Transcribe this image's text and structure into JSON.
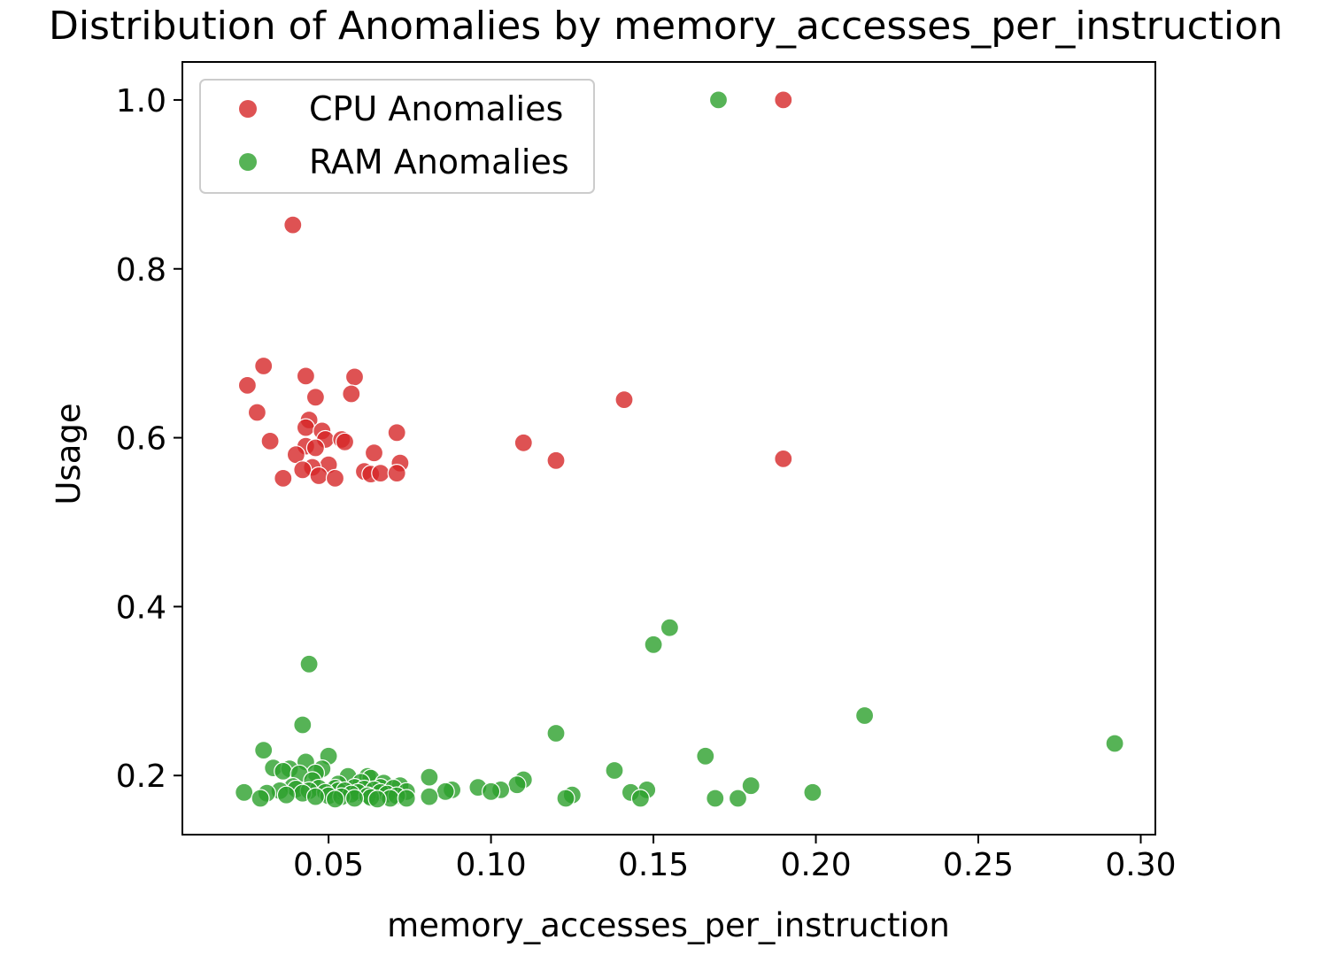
{
  "chart_data": {
    "type": "scatter",
    "title": "Distribution of Anomalies by memory_accesses_per_instruction",
    "xlabel": "memory_accesses_per_instruction",
    "ylabel": "Usage",
    "xlim": [
      0.005,
      0.3045
    ],
    "ylim": [
      0.13,
      1.045
    ],
    "xticks": [
      0.05,
      0.1,
      0.15,
      0.2,
      0.25,
      0.3
    ],
    "xtick_labels": [
      "0.05",
      "0.10",
      "0.15",
      "0.20",
      "0.25",
      "0.30"
    ],
    "yticks": [
      0.2,
      0.4,
      0.6,
      0.8,
      1.0
    ],
    "ytick_labels": [
      "0.2",
      "0.4",
      "0.6",
      "0.8",
      "1.0"
    ],
    "legend_position": "top-left",
    "grid": false,
    "series": [
      {
        "name": "CPU Anomalies",
        "color": "#d62728",
        "points": [
          [
            0.19,
            1.0
          ],
          [
            0.039,
            0.852
          ],
          [
            0.03,
            0.685
          ],
          [
            0.025,
            0.662
          ],
          [
            0.028,
            0.63
          ],
          [
            0.043,
            0.673
          ],
          [
            0.058,
            0.672
          ],
          [
            0.057,
            0.652
          ],
          [
            0.046,
            0.648
          ],
          [
            0.141,
            0.645
          ],
          [
            0.044,
            0.621
          ],
          [
            0.043,
            0.612
          ],
          [
            0.048,
            0.608
          ],
          [
            0.071,
            0.606
          ],
          [
            0.032,
            0.596
          ],
          [
            0.049,
            0.598
          ],
          [
            0.054,
            0.598
          ],
          [
            0.055,
            0.595
          ],
          [
            0.11,
            0.594
          ],
          [
            0.043,
            0.59
          ],
          [
            0.046,
            0.588
          ],
          [
            0.064,
            0.582
          ],
          [
            0.04,
            0.58
          ],
          [
            0.19,
            0.575
          ],
          [
            0.12,
            0.573
          ],
          [
            0.072,
            0.57
          ],
          [
            0.05,
            0.568
          ],
          [
            0.045,
            0.565
          ],
          [
            0.042,
            0.562
          ],
          [
            0.061,
            0.56
          ],
          [
            0.063,
            0.557
          ],
          [
            0.066,
            0.558
          ],
          [
            0.071,
            0.558
          ],
          [
            0.047,
            0.555
          ],
          [
            0.052,
            0.552
          ],
          [
            0.036,
            0.552
          ]
        ]
      },
      {
        "name": "RAM Anomalies",
        "color": "#2ca02c",
        "points": [
          [
            0.17,
            1.0
          ],
          [
            0.155,
            0.375
          ],
          [
            0.15,
            0.355
          ],
          [
            0.044,
            0.332
          ],
          [
            0.215,
            0.271
          ],
          [
            0.042,
            0.26
          ],
          [
            0.12,
            0.25
          ],
          [
            0.292,
            0.238
          ],
          [
            0.03,
            0.23
          ],
          [
            0.05,
            0.223
          ],
          [
            0.166,
            0.223
          ],
          [
            0.043,
            0.216
          ],
          [
            0.033,
            0.209
          ],
          [
            0.038,
            0.208
          ],
          [
            0.048,
            0.208
          ],
          [
            0.138,
            0.206
          ],
          [
            0.036,
            0.205
          ],
          [
            0.046,
            0.203
          ],
          [
            0.041,
            0.202
          ],
          [
            0.081,
            0.198
          ],
          [
            0.056,
            0.199
          ],
          [
            0.062,
            0.199
          ],
          [
            0.063,
            0.197
          ],
          [
            0.11,
            0.195
          ],
          [
            0.045,
            0.194
          ],
          [
            0.06,
            0.192
          ],
          [
            0.067,
            0.191
          ],
          [
            0.053,
            0.19
          ],
          [
            0.108,
            0.189
          ],
          [
            0.18,
            0.188
          ],
          [
            0.072,
            0.188
          ],
          [
            0.039,
            0.187
          ],
          [
            0.058,
            0.186
          ],
          [
            0.066,
            0.186
          ],
          [
            0.096,
            0.186
          ],
          [
            0.047,
            0.185
          ],
          [
            0.052,
            0.185
          ],
          [
            0.07,
            0.185
          ],
          [
            0.04,
            0.184
          ],
          [
            0.061,
            0.184
          ],
          [
            0.064,
            0.183
          ],
          [
            0.088,
            0.183
          ],
          [
            0.103,
            0.183
          ],
          [
            0.148,
            0.183
          ],
          [
            0.035,
            0.182
          ],
          [
            0.044,
            0.182
          ],
          [
            0.053,
            0.182
          ],
          [
            0.055,
            0.182
          ],
          [
            0.074,
            0.181
          ],
          [
            0.086,
            0.181
          ],
          [
            0.1,
            0.181
          ],
          [
            0.143,
            0.18
          ],
          [
            0.024,
            0.18
          ],
          [
            0.049,
            0.18
          ],
          [
            0.059,
            0.18
          ],
          [
            0.066,
            0.18
          ],
          [
            0.199,
            0.18
          ],
          [
            0.031,
            0.179
          ],
          [
            0.042,
            0.179
          ],
          [
            0.057,
            0.178
          ],
          [
            0.068,
            0.178
          ],
          [
            0.125,
            0.177
          ],
          [
            0.037,
            0.177
          ],
          [
            0.05,
            0.176
          ],
          [
            0.062,
            0.176
          ],
          [
            0.071,
            0.176
          ],
          [
            0.054,
            0.175
          ],
          [
            0.046,
            0.175
          ],
          [
            0.081,
            0.175
          ],
          [
            0.063,
            0.174
          ],
          [
            0.029,
            0.173
          ],
          [
            0.058,
            0.173
          ],
          [
            0.069,
            0.173
          ],
          [
            0.074,
            0.173
          ],
          [
            0.123,
            0.173
          ],
          [
            0.146,
            0.173
          ],
          [
            0.169,
            0.173
          ],
          [
            0.176,
            0.173
          ],
          [
            0.065,
            0.172
          ],
          [
            0.052,
            0.172
          ]
        ]
      }
    ]
  }
}
